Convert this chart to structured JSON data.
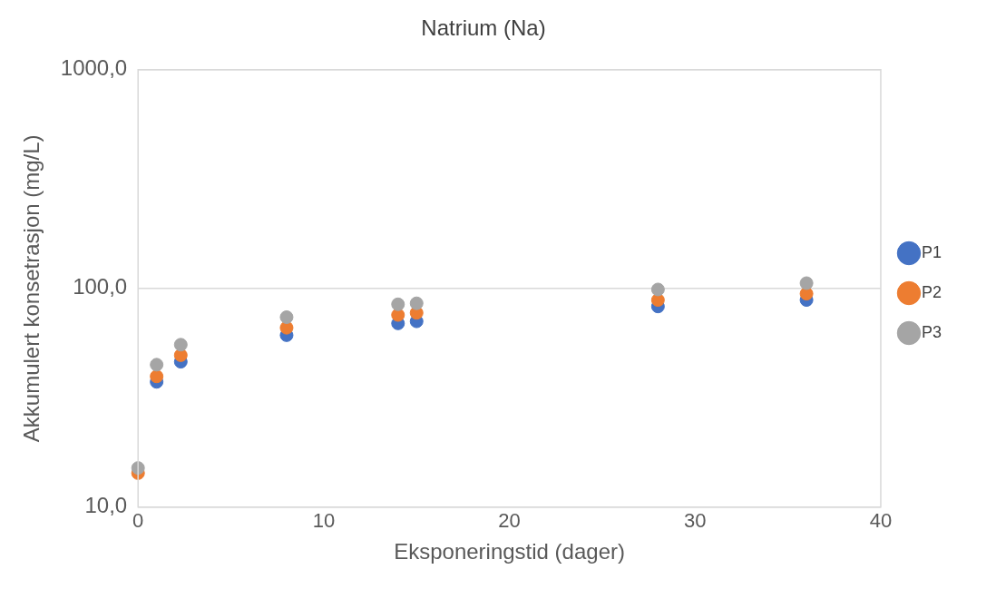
{
  "chart_data": {
    "type": "scatter",
    "title": "Natrium (Na)",
    "xlabel": "Eksponeringstid (dager)",
    "ylabel": "Akkumulert konsetrasjon (mg/L)",
    "x": [
      0,
      1,
      2.3,
      8,
      14,
      15,
      28,
      36
    ],
    "series": [
      {
        "name": "P1",
        "color": "#4472c4",
        "values": [
          null,
          37.4,
          46.2,
          61.1,
          69.2,
          70.7,
          82.7,
          88.5
        ]
      },
      {
        "name": "P2",
        "color": "#ed7d31",
        "values": [
          14.3,
          39.6,
          49.5,
          66.1,
          75.6,
          77.3,
          88.5,
          94.6
        ]
      },
      {
        "name": "P3",
        "color": "#a5a5a5",
        "values": [
          15.1,
          44.8,
          55.3,
          73.9,
          84.6,
          85.5,
          98.9,
          105.7
        ]
      }
    ],
    "xlim": [
      0,
      40
    ],
    "xticks": [
      0,
      10,
      20,
      30,
      40
    ],
    "ylim": [
      10,
      1000
    ],
    "yticks": [
      {
        "value": 10,
        "label": "10,0"
      },
      {
        "value": 100,
        "label": "100,0"
      },
      {
        "value": 1000,
        "label": "1000,0"
      }
    ],
    "log": "y",
    "grid": "y",
    "legend": "right",
    "marker": "circle"
  }
}
